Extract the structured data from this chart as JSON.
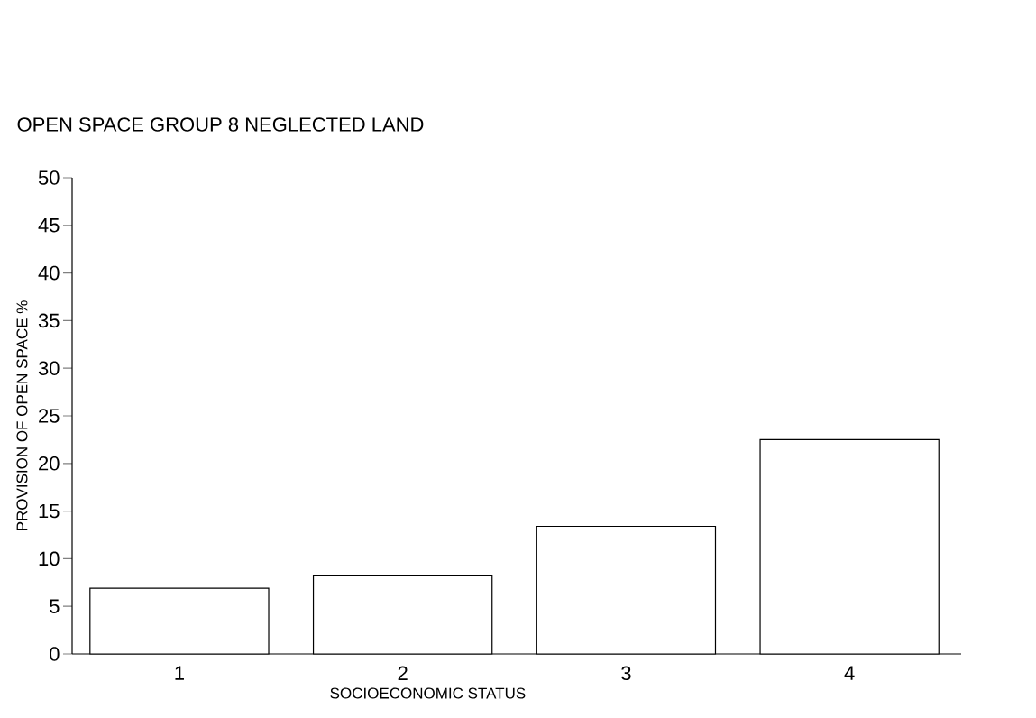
{
  "chart_data": {
    "type": "bar",
    "title": "OPEN SPACE GROUP 8 NEGLECTED LAND",
    "xlabel": "SOCIOECONOMIC STATUS",
    "ylabel": "PROVISION OF OPEN SPACE %",
    "categories": [
      "1",
      "2",
      "3",
      "4"
    ],
    "values": [
      6.9,
      8.2,
      13.4,
      22.5
    ],
    "color": "#ffffff",
    "ylim": [
      0,
      50
    ],
    "yticks": [
      0,
      5,
      10,
      15,
      20,
      25,
      30,
      35,
      40,
      45,
      50
    ]
  }
}
